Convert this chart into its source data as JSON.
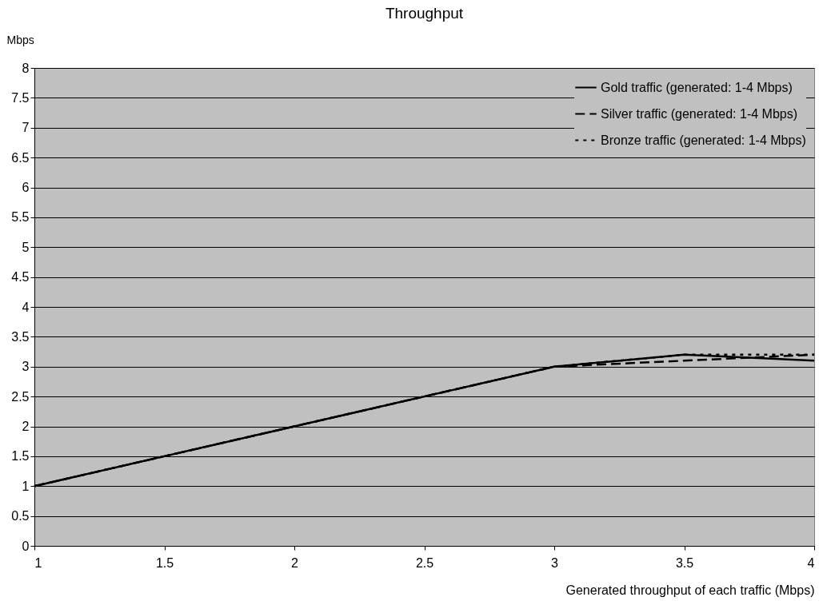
{
  "chart_data": {
    "type": "line",
    "title": "Throughput",
    "xlabel": "Generated throughput of each traffic (Mbps)",
    "ylabel": "Mbps",
    "x": [
      1,
      1.5,
      2,
      2.5,
      3,
      3.5,
      4
    ],
    "series": [
      {
        "name": "Gold traffic (generated: 1-4 Mbps)",
        "color": "#000000",
        "line_style": "solid",
        "values": [
          1,
          1.5,
          2,
          2.5,
          3,
          3.2,
          3.1
        ]
      },
      {
        "name": "Silver traffic (generated: 1-4 Mbps)",
        "color": "#000000",
        "line_style": "dashed",
        "values": [
          1,
          1.5,
          2,
          2.5,
          3,
          3.1,
          3.2
        ]
      },
      {
        "name": "Bronze traffic (generated: 1-4 Mbps)",
        "color": "#000000",
        "line_style": "dotted",
        "values": [
          1,
          1.5,
          2,
          2.5,
          3,
          3.2,
          3.2
        ]
      }
    ],
    "xlim": [
      1,
      4
    ],
    "xticks": [
      1,
      1.5,
      2,
      2.5,
      3,
      3.5,
      4
    ],
    "ylim": [
      0,
      8
    ],
    "yticks": [
      0,
      0.5,
      1,
      1.5,
      2,
      2.5,
      3,
      3.5,
      4,
      4.5,
      5,
      5.5,
      6,
      6.5,
      7,
      7.5,
      8
    ],
    "grid": "y",
    "legend": "top right",
    "marker": "none"
  }
}
